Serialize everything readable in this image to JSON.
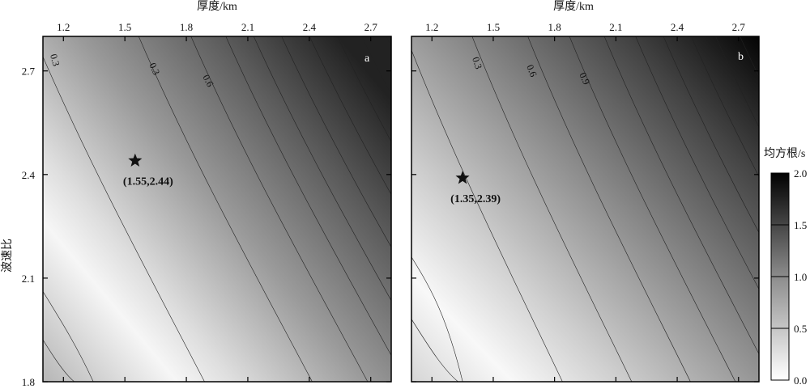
{
  "chart_data": [
    {
      "type": "heatmap",
      "panel_label": "a",
      "xlabel": "厚度/km",
      "ylabel": "波速比",
      "xlim": [
        1.1,
        2.8
      ],
      "ylim": [
        1.8,
        2.8
      ],
      "xticks": [
        "1.2",
        "1.5",
        "1.8",
        "2.1",
        "2.4",
        "2.7"
      ],
      "yticks": [
        "1.8",
        "2.1",
        "2.4",
        "2.7"
      ],
      "minimum": {
        "x": 1.55,
        "y": 2.44,
        "label": "(1.55,2.44)"
      },
      "contour_labels": [
        "0.3",
        "0.3",
        "0.6"
      ],
      "value_range": [
        0.0,
        2.0
      ]
    },
    {
      "type": "heatmap",
      "panel_label": "b",
      "xlabel": "厚度/km",
      "ylabel": "",
      "xlim": [
        1.1,
        2.8
      ],
      "ylim": [
        1.8,
        2.8
      ],
      "xticks": [
        "1.2",
        "1.5",
        "1.8",
        "2.1",
        "2.4",
        "2.7"
      ],
      "yticks": [],
      "minimum": {
        "x": 1.35,
        "y": 2.39,
        "label": "(1.35,2.39)"
      },
      "contour_labels": [
        "0.3",
        "0.6",
        "0.9"
      ],
      "value_range": [
        0.0,
        2.0
      ]
    }
  ],
  "colorbar": {
    "title": "均方根/s",
    "ticks": [
      "0.0",
      "0.5",
      "1.0",
      "1.5",
      "2.0"
    ],
    "range": [
      0.0,
      2.0
    ]
  }
}
